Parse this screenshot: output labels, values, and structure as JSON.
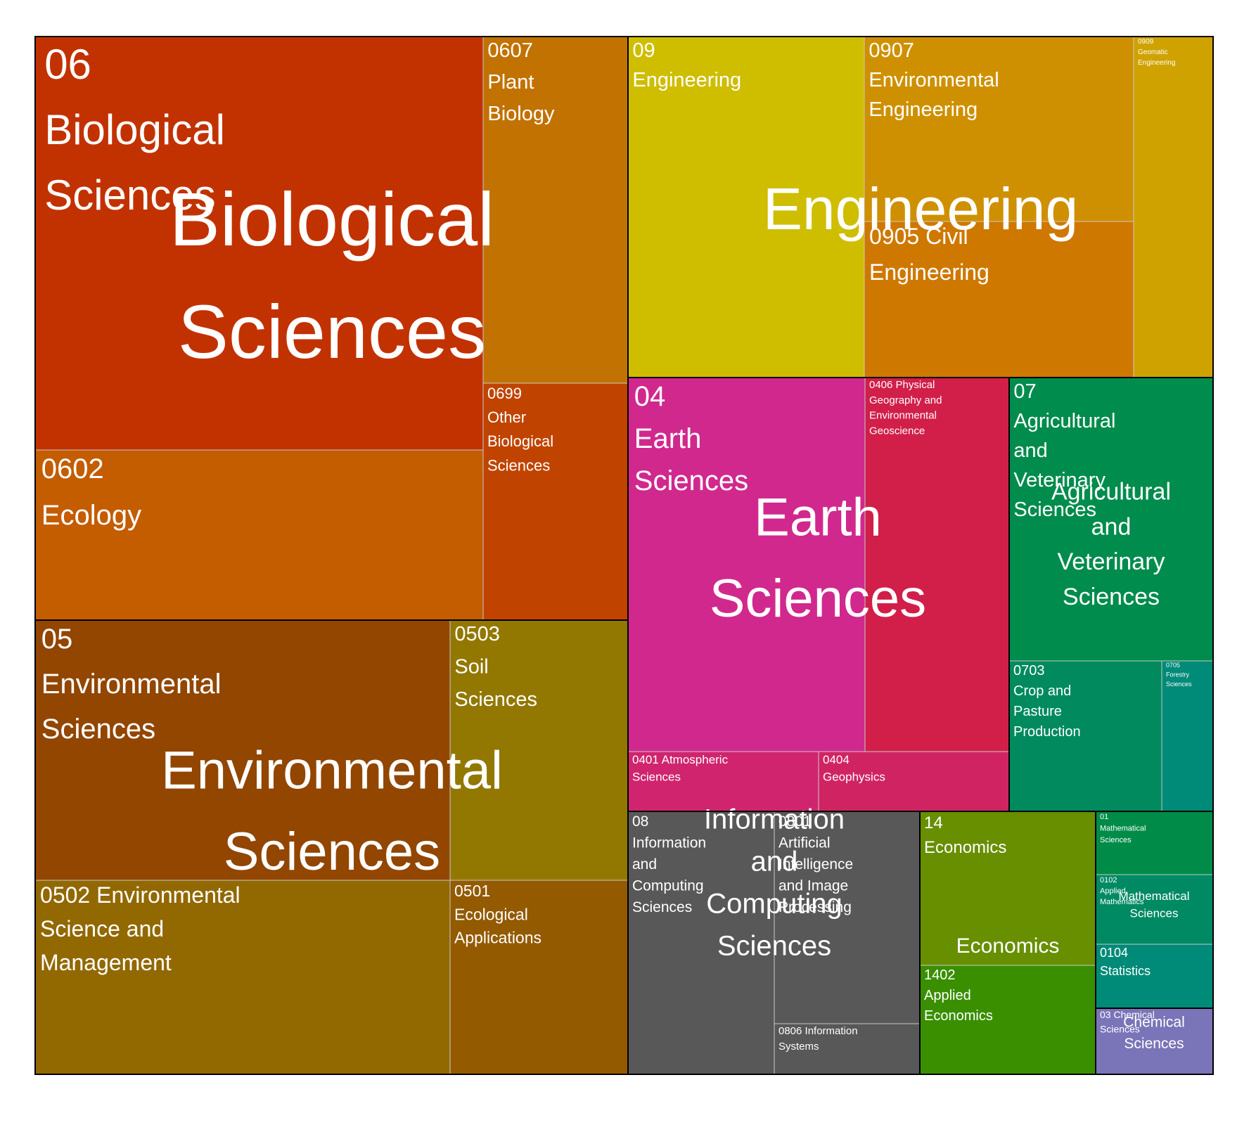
{
  "chart_data": {
    "type": "treemap",
    "title": "",
    "groups": [
      {
        "id": "06",
        "name": "Biological Sciences",
        "label": "06 Biological Sciences",
        "watermark": "Biological Sciences",
        "children": [
          {
            "label": "06 Biological Sciences",
            "color": "#c23200"
          },
          {
            "label": "0602 Ecology",
            "color": "#c45c00"
          },
          {
            "label": "0607 Plant Biology",
            "color": "#c27200"
          },
          {
            "label": "0699 Other Biological Sciences",
            "color": "#c04400"
          }
        ]
      },
      {
        "id": "05",
        "name": "Environmental Sciences",
        "label": "05 Environmental Sciences",
        "watermark": "Environmental Sciences",
        "children": [
          {
            "label": "05 Environmental Sciences",
            "color": "#924600"
          },
          {
            "label": "0502 Environmental Science and Management",
            "color": "#926800"
          },
          {
            "label": "0503 Soil Sciences",
            "color": "#927800"
          },
          {
            "label": "0501 Ecological Applications",
            "color": "#935a00"
          }
        ]
      },
      {
        "id": "09",
        "name": "Engineering",
        "label": "09 Engineering",
        "watermark": "Engineering",
        "children": [
          {
            "label": "09 Engineering",
            "color": "#cfbd00"
          },
          {
            "label": "0907 Environmental Engineering",
            "color": "#cf9000"
          },
          {
            "label": "0905 Civil Engineering",
            "color": "#cf7800"
          },
          {
            "label": "0909 Geomatic Engineering",
            "color": "#cfa200"
          }
        ]
      },
      {
        "id": "04",
        "name": "Earth Sciences",
        "label": "04 Earth Sciences",
        "watermark": "Earth Sciences",
        "children": [
          {
            "label": "04 Earth Sciences",
            "color": "#d1288e"
          },
          {
            "label": "0406 Physical Geography and Environmental Geoscience",
            "color": "#d11f4a"
          },
          {
            "label": "0401 Atmospheric Sciences",
            "color": "#d0256e"
          },
          {
            "label": "0404 Geophysics",
            "color": "#d02462"
          }
        ]
      },
      {
        "id": "07",
        "name": "Agricultural and Veterinary Sciences",
        "label": "07 Agricultural and Veterinary Sciences",
        "watermark": "Agricultural and Veterinary Sciences",
        "children": [
          {
            "label": "07 Agricultural and Veterinary Sciences",
            "color": "#008c4c"
          },
          {
            "label": "0703 Crop and Pasture Production",
            "color": "#008a5e"
          },
          {
            "label": "0705 Forestry Sciences",
            "color": "#008a78"
          }
        ]
      },
      {
        "id": "08",
        "name": "Information and Computing Sciences",
        "label": "08 Information and Computing Sciences",
        "watermark": "Information and Computing Sciences",
        "children": [
          {
            "label": "08 Information and Computing Sciences",
            "color": "#585858"
          },
          {
            "label": "0801 Artificial Intelligence and Image Processing",
            "color": "#585858"
          },
          {
            "label": "0806 Information Systems",
            "color": "#585858"
          }
        ]
      },
      {
        "id": "14",
        "name": "Economics",
        "label": "14 Economics",
        "watermark": "Economics",
        "children": [
          {
            "label": "14 Economics",
            "color": "#678f00"
          },
          {
            "label": "1402 Applied Economics",
            "color": "#398f00"
          }
        ]
      },
      {
        "id": "01",
        "name": "Mathematical Sciences",
        "label": "01 Mathematical Sciences",
        "watermark": "Mathematical Sciences",
        "children": [
          {
            "label": "01 Mathematical Sciences",
            "color": "#008c48"
          },
          {
            "label": "0102 Applied Mathematics",
            "color": "#008a64"
          },
          {
            "label": "0104 Statistics",
            "color": "#008a78"
          }
        ]
      },
      {
        "id": "03",
        "name": "Chemical Sciences",
        "label": "03 Chemical Sciences",
        "watermark": "Chemical Sciences",
        "children": [
          {
            "label": "03 Chemical Sciences",
            "color": "#7a74b8"
          }
        ]
      }
    ]
  }
}
